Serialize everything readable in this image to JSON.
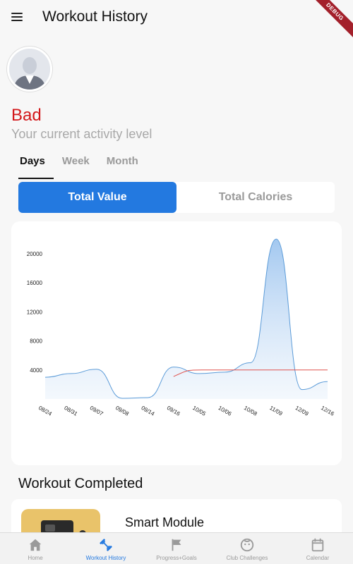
{
  "appbar": {
    "title": "Workout History",
    "debug_label": "DEBUG"
  },
  "profile": {
    "level": "Bad",
    "level_caption": "Your current activity level",
    "level_color": "#d3171a"
  },
  "period_tabs": [
    {
      "label": "Days",
      "active": true
    },
    {
      "label": "Week",
      "active": false
    },
    {
      "label": "Month",
      "active": false
    }
  ],
  "metric_toggle": [
    {
      "label": "Total Value",
      "active": true
    },
    {
      "label": "Total Calories",
      "active": false
    }
  ],
  "chart_data": {
    "type": "area",
    "categories": [
      "08/24",
      "08/31",
      "09/07",
      "09/08",
      "09/14",
      "09/16",
      "10/05",
      "10/06",
      "10/08",
      "11/09",
      "12/09",
      "12/16"
    ],
    "series": [
      {
        "values": [
          3000,
          3500,
          4100,
          100,
          200,
          4400,
          3500,
          3700,
          5000,
          22000,
          1300,
          2400
        ],
        "color": "#5b9bd8"
      }
    ],
    "reference_line": {
      "value": 4000,
      "from_category": "09/16",
      "color": "#e0534f"
    },
    "yticks": [
      4000,
      8000,
      12000,
      16000,
      20000
    ],
    "ylim": [
      0,
      22500
    ],
    "grid": false
  },
  "completed": {
    "title": "Workout Completed",
    "items": [
      {
        "name": "Smart Module"
      }
    ]
  },
  "bottom_nav": [
    {
      "label": "Home",
      "icon": "home-icon",
      "active": false
    },
    {
      "label": "Workout History",
      "icon": "dumbbell-icon",
      "active": true
    },
    {
      "label": "Progress+Goals",
      "icon": "flag-icon",
      "active": false
    },
    {
      "label": "Club Challenges",
      "icon": "face-icon",
      "active": false
    },
    {
      "label": "Calendar",
      "icon": "calendar-icon",
      "active": false
    }
  ],
  "colors": {
    "accent": "#2379e0",
    "inactive": "#9a9a9a"
  }
}
